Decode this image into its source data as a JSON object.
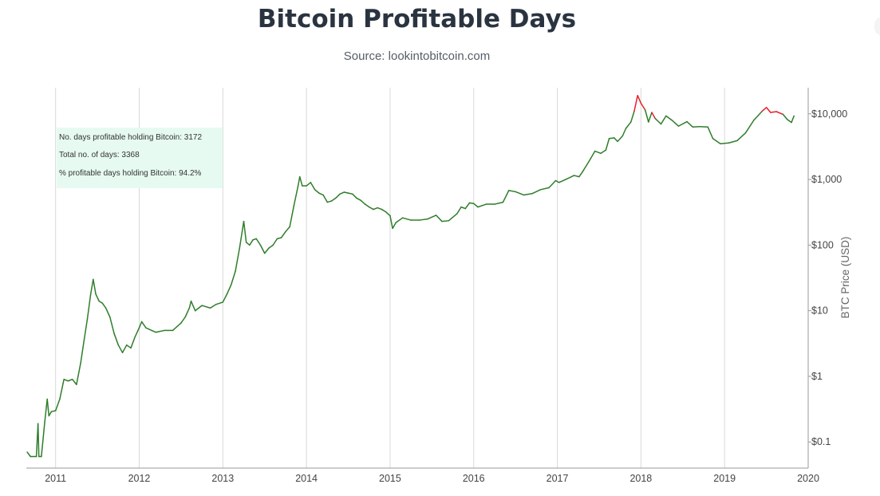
{
  "header": {
    "title": "Bitcoin Profitable Days",
    "subtitle": "Source: lookintobitcoin.com"
  },
  "infobox": {
    "line1": "No. days profitable holding Bitcoin: 3172",
    "line2": "Total no. of days: 3368",
    "line3": "% profitable days holding Bitcoin: 94.2%"
  },
  "colors": {
    "profitable": "#2f7d2a",
    "unprofitable": "#e8202a",
    "grid": "#d9d9d9",
    "infobox_bg": "#e6faf1"
  },
  "chart_data": {
    "type": "line",
    "title": "Bitcoin Profitable Days",
    "subtitle": "Source: lookintobitcoin.com",
    "xlabel": "",
    "ylabel": "BTC Price (USD)",
    "yscale": "log",
    "ylim": [
      0.04,
      25000
    ],
    "xlim": [
      2010.65,
      2020.0
    ],
    "grid": "vertical",
    "x_ticks": [
      "2011",
      "2012",
      "2013",
      "2014",
      "2015",
      "2016",
      "2017",
      "2018",
      "2019",
      "2020"
    ],
    "y_ticks": [
      "$0.1",
      "$1",
      "$10",
      "$100",
      "$1,000",
      "$10,000"
    ],
    "y_tick_values": [
      0.1,
      1,
      10,
      100,
      1000,
      10000
    ],
    "series": [
      {
        "color_rule": "red where the price is above the final price, green otherwise",
        "points": [
          [
            2010.66,
            0.07
          ],
          [
            2010.7,
            0.06
          ],
          [
            2010.77,
            0.06
          ],
          [
            2010.79,
            0.19
          ],
          [
            2010.8,
            0.06
          ],
          [
            2010.83,
            0.06
          ],
          [
            2010.87,
            0.2
          ],
          [
            2010.9,
            0.45
          ],
          [
            2010.92,
            0.25
          ],
          [
            2010.95,
            0.29
          ],
          [
            2011.0,
            0.3
          ],
          [
            2011.05,
            0.45
          ],
          [
            2011.1,
            0.9
          ],
          [
            2011.15,
            0.85
          ],
          [
            2011.2,
            0.9
          ],
          [
            2011.25,
            0.75
          ],
          [
            2011.3,
            1.6
          ],
          [
            2011.34,
            3.5
          ],
          [
            2011.38,
            7.5
          ],
          [
            2011.42,
            18
          ],
          [
            2011.45,
            30
          ],
          [
            2011.48,
            18
          ],
          [
            2011.52,
            14
          ],
          [
            2011.56,
            13
          ],
          [
            2011.6,
            11
          ],
          [
            2011.65,
            8
          ],
          [
            2011.7,
            4.5
          ],
          [
            2011.75,
            3
          ],
          [
            2011.8,
            2.3
          ],
          [
            2011.85,
            3
          ],
          [
            2011.9,
            2.7
          ],
          [
            2011.95,
            4
          ],
          [
            2012.0,
            5.5
          ],
          [
            2012.03,
            6.8
          ],
          [
            2012.08,
            5.5
          ],
          [
            2012.15,
            5
          ],
          [
            2012.2,
            4.7
          ],
          [
            2012.3,
            5
          ],
          [
            2012.4,
            5
          ],
          [
            2012.5,
            6.5
          ],
          [
            2012.55,
            8
          ],
          [
            2012.6,
            11
          ],
          [
            2012.62,
            14
          ],
          [
            2012.67,
            10
          ],
          [
            2012.75,
            12
          ],
          [
            2012.85,
            11
          ],
          [
            2012.92,
            12.5
          ],
          [
            2013.0,
            13.5
          ],
          [
            2013.05,
            18
          ],
          [
            2013.1,
            25
          ],
          [
            2013.15,
            40
          ],
          [
            2013.2,
            90
          ],
          [
            2013.25,
            230
          ],
          [
            2013.28,
            110
          ],
          [
            2013.32,
            100
          ],
          [
            2013.36,
            120
          ],
          [
            2013.4,
            125
          ],
          [
            2013.45,
            100
          ],
          [
            2013.5,
            75
          ],
          [
            2013.55,
            90
          ],
          [
            2013.6,
            100
          ],
          [
            2013.65,
            125
          ],
          [
            2013.7,
            130
          ],
          [
            2013.75,
            160
          ],
          [
            2013.8,
            190
          ],
          [
            2013.85,
            400
          ],
          [
            2013.9,
            800
          ],
          [
            2013.92,
            1100
          ],
          [
            2013.95,
            800
          ],
          [
            2014.0,
            800
          ],
          [
            2014.05,
            900
          ],
          [
            2014.1,
            700
          ],
          [
            2014.15,
            620
          ],
          [
            2014.2,
            580
          ],
          [
            2014.25,
            450
          ],
          [
            2014.3,
            470
          ],
          [
            2014.35,
            520
          ],
          [
            2014.4,
            600
          ],
          [
            2014.45,
            640
          ],
          [
            2014.5,
            620
          ],
          [
            2014.55,
            600
          ],
          [
            2014.6,
            520
          ],
          [
            2014.65,
            480
          ],
          [
            2014.7,
            420
          ],
          [
            2014.75,
            380
          ],
          [
            2014.8,
            350
          ],
          [
            2014.85,
            370
          ],
          [
            2014.9,
            350
          ],
          [
            2014.95,
            320
          ],
          [
            2015.0,
            280
          ],
          [
            2015.03,
            180
          ],
          [
            2015.07,
            220
          ],
          [
            2015.15,
            260
          ],
          [
            2015.25,
            240
          ],
          [
            2015.35,
            240
          ],
          [
            2015.45,
            250
          ],
          [
            2015.55,
            285
          ],
          [
            2015.62,
            230
          ],
          [
            2015.7,
            235
          ],
          [
            2015.8,
            300
          ],
          [
            2015.85,
            380
          ],
          [
            2015.9,
            360
          ],
          [
            2015.95,
            440
          ],
          [
            2016.0,
            430
          ],
          [
            2016.05,
            380
          ],
          [
            2016.15,
            420
          ],
          [
            2016.25,
            420
          ],
          [
            2016.35,
            450
          ],
          [
            2016.42,
            680
          ],
          [
            2016.5,
            650
          ],
          [
            2016.6,
            580
          ],
          [
            2016.7,
            610
          ],
          [
            2016.8,
            700
          ],
          [
            2016.9,
            750
          ],
          [
            2016.98,
            960
          ],
          [
            2017.02,
            900
          ],
          [
            2017.1,
            1000
          ],
          [
            2017.2,
            1150
          ],
          [
            2017.26,
            1100
          ],
          [
            2017.3,
            1300
          ],
          [
            2017.38,
            1900
          ],
          [
            2017.45,
            2700
          ],
          [
            2017.52,
            2500
          ],
          [
            2017.58,
            2800
          ],
          [
            2017.62,
            4200
          ],
          [
            2017.68,
            4300
          ],
          [
            2017.72,
            3800
          ],
          [
            2017.78,
            4600
          ],
          [
            2017.82,
            6000
          ],
          [
            2017.88,
            7500
          ],
          [
            2017.92,
            11000
          ],
          [
            2017.96,
            19000
          ],
          [
            2018.0,
            14500
          ],
          [
            2018.05,
            11500
          ],
          [
            2018.09,
            7500
          ],
          [
            2018.13,
            10500
          ],
          [
            2018.17,
            8500
          ],
          [
            2018.24,
            7000
          ],
          [
            2018.3,
            9300
          ],
          [
            2018.37,
            8000
          ],
          [
            2018.45,
            6500
          ],
          [
            2018.55,
            7600
          ],
          [
            2018.62,
            6300
          ],
          [
            2018.7,
            6400
          ],
          [
            2018.8,
            6300
          ],
          [
            2018.86,
            4200
          ],
          [
            2018.95,
            3500
          ],
          [
            2019.05,
            3600
          ],
          [
            2019.15,
            3900
          ],
          [
            2019.25,
            5100
          ],
          [
            2019.35,
            8000
          ],
          [
            2019.45,
            11000
          ],
          [
            2019.5,
            12500
          ],
          [
            2019.55,
            10500
          ],
          [
            2019.62,
            10800
          ],
          [
            2019.7,
            9800
          ],
          [
            2019.75,
            8200
          ],
          [
            2019.8,
            7400
          ],
          [
            2019.83,
            9300
          ]
        ]
      }
    ]
  }
}
